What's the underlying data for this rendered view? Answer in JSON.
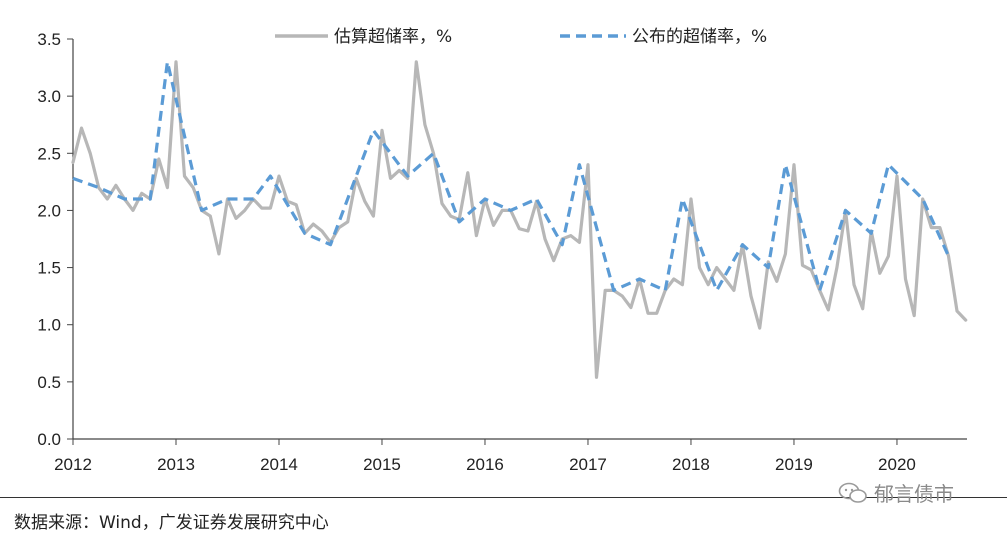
{
  "chart_data": {
    "type": "line",
    "title": "",
    "xlabel": "",
    "ylabel": "",
    "ylim": [
      0,
      3.5
    ],
    "yticks": [
      "0.0",
      "0.5",
      "1.0",
      "1.5",
      "2.0",
      "2.5",
      "3.0",
      "3.5"
    ],
    "xlim": [
      2012,
      2020.68
    ],
    "xticks": [
      "2012",
      "2013",
      "2014",
      "2015",
      "2016",
      "2017",
      "2018",
      "2019",
      "2020"
    ],
    "grid": false,
    "legend_position": "top",
    "series": [
      {
        "name": "估算超储率，%",
        "style": "solid",
        "color": "#b7b7b7",
        "x": [
          2012.0,
          2012.083,
          2012.167,
          2012.25,
          2012.333,
          2012.417,
          2012.5,
          2012.583,
          2012.667,
          2012.75,
          2012.833,
          2012.917,
          2013.0,
          2013.083,
          2013.167,
          2013.25,
          2013.333,
          2013.417,
          2013.5,
          2013.583,
          2013.667,
          2013.75,
          2013.833,
          2013.917,
          2014.0,
          2014.083,
          2014.167,
          2014.25,
          2014.333,
          2014.417,
          2014.5,
          2014.583,
          2014.667,
          2014.75,
          2014.833,
          2014.917,
          2015.0,
          2015.083,
          2015.167,
          2015.25,
          2015.333,
          2015.417,
          2015.5,
          2015.583,
          2015.667,
          2015.75,
          2015.833,
          2015.917,
          2016.0,
          2016.083,
          2016.167,
          2016.25,
          2016.333,
          2016.417,
          2016.5,
          2016.583,
          2016.667,
          2016.75,
          2016.833,
          2016.917,
          2017.0,
          2017.083,
          2017.167,
          2017.25,
          2017.333,
          2017.417,
          2017.5,
          2017.583,
          2017.667,
          2017.75,
          2017.833,
          2017.917,
          2018.0,
          2018.083,
          2018.167,
          2018.25,
          2018.333,
          2018.417,
          2018.5,
          2018.583,
          2018.667,
          2018.75,
          2018.833,
          2018.917,
          2019.0,
          2019.083,
          2019.167,
          2019.25,
          2019.333,
          2019.417,
          2019.5,
          2019.583,
          2019.667,
          2019.75,
          2019.833,
          2019.917,
          2020.0,
          2020.083,
          2020.167,
          2020.25,
          2020.333,
          2020.417,
          2020.5,
          2020.583,
          2020.667
        ],
        "values": [
          2.42,
          2.72,
          2.5,
          2.2,
          2.1,
          2.22,
          2.1,
          2.0,
          2.15,
          2.1,
          2.45,
          2.2,
          3.3,
          2.3,
          2.2,
          2.0,
          1.95,
          1.62,
          2.1,
          1.93,
          2.0,
          2.1,
          2.02,
          2.02,
          2.3,
          2.08,
          2.05,
          1.8,
          1.88,
          1.82,
          1.72,
          1.85,
          1.9,
          2.28,
          2.08,
          1.95,
          2.7,
          2.28,
          2.35,
          2.28,
          3.3,
          2.75,
          2.5,
          2.06,
          1.95,
          1.92,
          2.33,
          1.78,
          2.1,
          1.87,
          2.0,
          2.0,
          1.84,
          1.82,
          2.08,
          1.75,
          1.56,
          1.75,
          1.78,
          1.72,
          2.4,
          0.54,
          1.3,
          1.3,
          1.25,
          1.15,
          1.4,
          1.1,
          1.1,
          1.3,
          1.4,
          1.35,
          2.1,
          1.5,
          1.35,
          1.5,
          1.4,
          1.3,
          1.7,
          1.25,
          0.97,
          1.55,
          1.38,
          1.62,
          2.4,
          1.52,
          1.48,
          1.3,
          1.13,
          1.5,
          2.0,
          1.35,
          1.14,
          1.82,
          1.45,
          1.6,
          2.3,
          1.4,
          1.08,
          2.1,
          1.85,
          1.85,
          1.6,
          1.12,
          1.04
        ]
      },
      {
        "name": "公布的超储率，%",
        "style": "dashed",
        "color": "#5b9bd5",
        "x": [
          2012.0,
          2012.25,
          2012.5,
          2012.75,
          2012.917,
          2013.25,
          2013.5,
          2013.75,
          2013.917,
          2014.25,
          2014.5,
          2014.75,
          2014.917,
          2015.25,
          2015.5,
          2015.75,
          2016.0,
          2016.25,
          2016.5,
          2016.75,
          2016.917,
          2017.25,
          2017.5,
          2017.75,
          2017.917,
          2018.25,
          2018.5,
          2018.75,
          2018.917,
          2019.25,
          2019.5,
          2019.75,
          2019.917,
          2020.25,
          2020.5
        ],
        "values": [
          2.28,
          2.2,
          2.1,
          2.1,
          3.3,
          2.0,
          2.1,
          2.1,
          2.3,
          1.8,
          1.7,
          2.3,
          2.7,
          2.3,
          2.5,
          1.9,
          2.1,
          2.0,
          2.1,
          1.7,
          2.4,
          1.3,
          1.4,
          1.3,
          2.1,
          1.3,
          1.7,
          1.5,
          2.4,
          1.3,
          2.0,
          1.8,
          2.4,
          2.1,
          1.6
        ]
      }
    ]
  },
  "source_text": "数据来源：Wind，广发证券发展研究中心",
  "watermark_text": "郁言债市"
}
